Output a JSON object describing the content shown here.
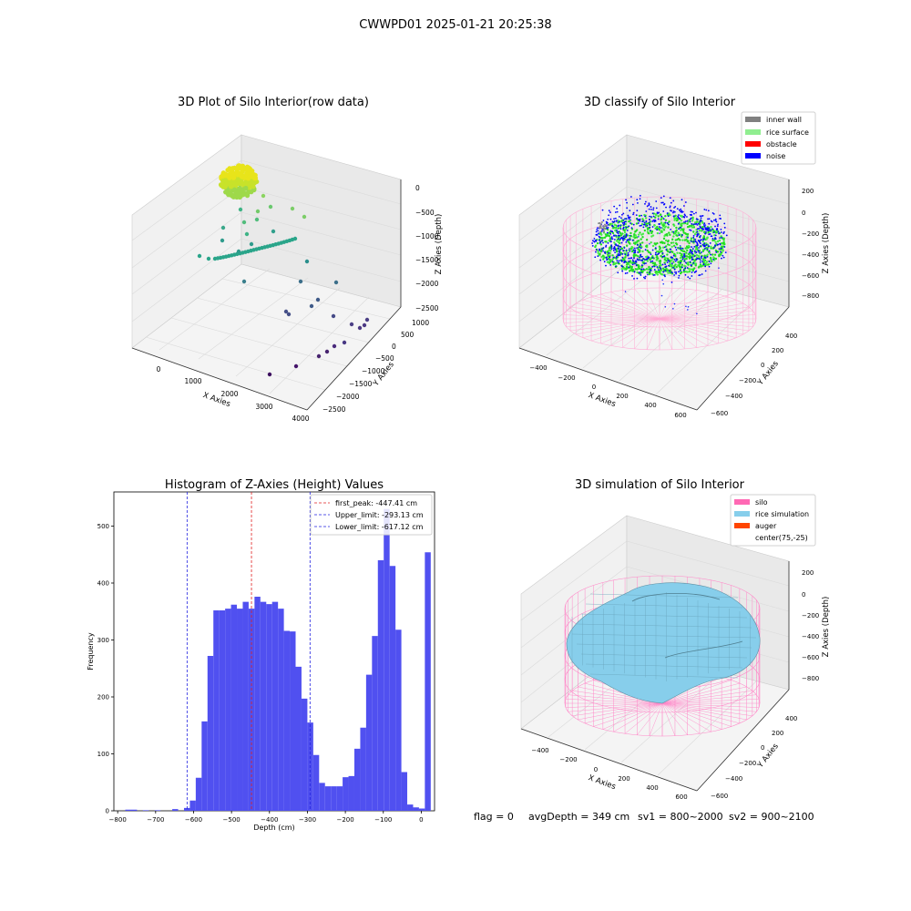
{
  "suptitle": "CWWPD01 2025-01-21 20:25:38",
  "footer": {
    "flag": "flag = 0",
    "avgDepth": "avgDepth = 349 cm",
    "sv1": "sv1 = 800~2000",
    "sv2": "sv2 = 900~2100"
  },
  "colors": {
    "hist_bar": "#5050f0",
    "first_peak_line": "#e02020",
    "limit_lines": "#2020e0",
    "inner_wall": "#808080",
    "rice_surface": "#90ee90",
    "obstacle": "#ff0000",
    "noise": "#0000ff",
    "silo": "#ff69b4",
    "rice_simulation": "#87ceeb",
    "auger": "#ff4500"
  },
  "panels": {
    "raw": {
      "title": "3D Plot of Silo Interior(row data)",
      "xlabel": "X Axies",
      "ylabel": "Y Axies",
      "zlabel": "Z Axies (Depth)",
      "xticks": [
        "0",
        "1000",
        "2000",
        "3000",
        "4000"
      ],
      "yticks": [
        "1000",
        "500",
        "0",
        "−500",
        "−1000",
        "−1500",
        "−2000",
        "−2500"
      ],
      "zticks": [
        "0",
        "−500",
        "−1000",
        "−1500",
        "−2000",
        "−2500"
      ]
    },
    "classify": {
      "title": "3D classify of Silo Interior",
      "xlabel": "X Axies",
      "ylabel": "Y Axies",
      "zlabel": "Z Axies (Depth)",
      "xticks": [
        "−400",
        "−200",
        "0",
        "200",
        "400",
        "600"
      ],
      "yticks": [
        "400",
        "200",
        "0",
        "−200",
        "−400",
        "−600"
      ],
      "zticks": [
        "200",
        "0",
        "−200",
        "−400",
        "−600",
        "−800"
      ],
      "legend": [
        "inner wall",
        "rice surface",
        "obstacle",
        "noise"
      ]
    },
    "simulation": {
      "title": "3D simulation of Silo Interior",
      "xlabel": "X Axies",
      "ylabel": "Y Axies",
      "zlabel": "Z Axies (Depth)",
      "xticks": [
        "−400",
        "−200",
        "0",
        "200",
        "400",
        "600"
      ],
      "yticks": [
        "400",
        "200",
        "0",
        "−200",
        "−400",
        "−600"
      ],
      "zticks": [
        "200",
        "0",
        "−200",
        "−400",
        "−600",
        "−800"
      ],
      "legend": [
        "silo",
        "rice simulation",
        "auger",
        "center(75,-25)"
      ]
    }
  },
  "chart_data": {
    "type": "bar",
    "title": "Histogram of Z-Axies (Height) Values",
    "xlabel": "Depth (cm)",
    "ylabel": "Frequency",
    "xlim": [
      -810,
      35
    ],
    "ylim": [
      0,
      560
    ],
    "xticks": [
      -800,
      -700,
      -600,
      -500,
      -400,
      -300,
      -200,
      -100,
      0
    ],
    "xtick_labels": [
      "−800",
      "−700",
      "−600",
      "−500",
      "−400",
      "−300",
      "−200",
      "−100",
      "0"
    ],
    "yticks": [
      0,
      100,
      200,
      300,
      400,
      500
    ],
    "ytick_labels": [
      "0",
      "100",
      "200",
      "300",
      "400",
      "500"
    ],
    "bin_start": -780,
    "bin_width": 15.48,
    "values": [
      2,
      2,
      0,
      1,
      0,
      1,
      0,
      0,
      3,
      0,
      5,
      18,
      58,
      157,
      272,
      352,
      352,
      355,
      362,
      355,
      367,
      355,
      376,
      367,
      363,
      367,
      355,
      316,
      315,
      253,
      197,
      155,
      98,
      49,
      43,
      43,
      43,
      59,
      61,
      109,
      146,
      239,
      307,
      440,
      530,
      430,
      318,
      68,
      11,
      6,
      4,
      454
    ],
    "lines": [
      {
        "name": "first_peak: -447.41 cm",
        "x": -447.41,
        "style": "red"
      },
      {
        "name": "Upper_limit: -293.13 cm",
        "x": -293.13,
        "style": "blue"
      },
      {
        "name": "Lower_limit: -617.12 cm",
        "x": -617.12,
        "style": "blue"
      }
    ],
    "legend_placement": "top-right"
  }
}
